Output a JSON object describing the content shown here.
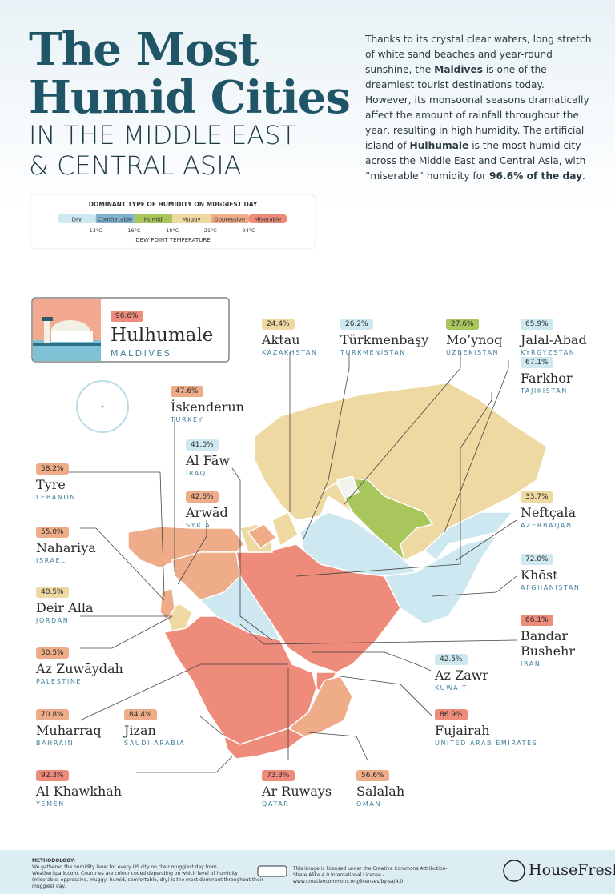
{
  "header": {
    "title_line1": "The Most",
    "title_line2": "Humid Cities",
    "subtitle_line1": "IN THE MIDDLE EAST",
    "subtitle_line2": "& CENTRAL ASIA",
    "description": [
      "Thanks to its crystal clear waters, long stretch of white sand beaches and year-round sunshine, the ",
      "Maldives",
      " is one of the dreamiest tourist destinations today. However, its monsoonal seasons dramatically affect the amount of rainfall throughout the year, resulting in high humidity. The artificial island of ",
      "Hulhumale",
      " is the most humid city across the Middle East and Central Asia, with “miserable” humidity for ",
      "96.6% of the day",
      "."
    ]
  },
  "legend": {
    "title": "DOMINANT TYPE OF HUMIDITY ON MUGGIEST DAY",
    "categories": [
      {
        "name": "Dry",
        "color": "#cde8f0"
      },
      {
        "name": "Comfortable",
        "color": "#7fb3cf"
      },
      {
        "name": "Humid",
        "color": "#a9c65c"
      },
      {
        "name": "Muggy",
        "color": "#efd9a2"
      },
      {
        "name": "Oppressive",
        "color": "#eeac88"
      },
      {
        "name": "Miserable",
        "color": "#ee8b7b"
      }
    ],
    "thresholds": [
      "13°C",
      "16°C",
      "18°C",
      "21°C",
      "24°C"
    ],
    "axis_label": "DEW POINT TEMPERATURE"
  },
  "featured": {
    "percent": "96.6%",
    "city": "Hulhumale",
    "country": "MALDIVES",
    "color": "#ee8b7b"
  },
  "cities": [
    {
      "percent": "24.4%",
      "city": "Aktau",
      "country": "KAZAKHSTAN",
      "color": "#efd9a2"
    },
    {
      "percent": "26.2%",
      "city": "Türkmenbaşy",
      "country": "TURKMENISTAN",
      "color": "#cde8f0"
    },
    {
      "percent": "27.6%",
      "city": "Mo’ynoq",
      "country": "UZBEKISTAN",
      "color": "#a9c65c"
    },
    {
      "percent": "65.9%",
      "city": "Jalal-Abad",
      "country": "KYRGYZSTAN",
      "color": "#cde8f0"
    },
    {
      "percent": "67.1%",
      "city": "Farkhor",
      "country": "TAJIKISTAN",
      "color": "#cde8f0"
    },
    {
      "percent": "47.6%",
      "city": "İskenderun",
      "country": "TURKEY",
      "color": "#eeac88"
    },
    {
      "percent": "41.0%",
      "city": "Al Fāw",
      "country": "IRAQ",
      "color": "#cde8f0"
    },
    {
      "percent": "58.2%",
      "city": "Tyre",
      "country": "LEBANON",
      "color": "#eeac88"
    },
    {
      "percent": "42.6%",
      "city": "Arwād",
      "country": "SYRIA",
      "color": "#eeac88"
    },
    {
      "percent": "33.7%",
      "city": "Neftçala",
      "country": "AZERBAIJAN",
      "color": "#efd9a2"
    },
    {
      "percent": "55.0%",
      "city": "Nahariya",
      "country": "ISRAEL",
      "color": "#eeac88"
    },
    {
      "percent": "72.0%",
      "city": "Khōst",
      "country": "AFGHANISTAN",
      "color": "#cde8f0"
    },
    {
      "percent": "40.5%",
      "city": "Deir Alla",
      "country": "JORDAN",
      "color": "#efd9a2"
    },
    {
      "percent": "66.1%",
      "city": "Bandar Bushehr",
      "country": "IRAN",
      "color": "#ee8b7b"
    },
    {
      "percent": "50.5%",
      "city": "Az Zuwāydah",
      "country": "PALESTINE",
      "color": "#eeac88"
    },
    {
      "percent": "42.5%",
      "city": "Az Zawr",
      "country": "KUWAIT",
      "color": "#cde8f0"
    },
    {
      "percent": "70.8%",
      "city": "Muharraq",
      "country": "BAHRAIN",
      "color": "#eeac88"
    },
    {
      "percent": "84.4%",
      "city": "Jizan",
      "country": "SAUDI ARABIA",
      "color": "#eeac88"
    },
    {
      "percent": "86.9%",
      "city": "Fujairah",
      "country": "UNITED ARAB EMIRATES",
      "color": "#ee8b7b"
    },
    {
      "percent": "92.3%",
      "city": "Al Khawkhah",
      "country": "YEMEN",
      "color": "#ee8b7b"
    },
    {
      "percent": "73.3%",
      "city": "Ar Ruways",
      "country": "QATAR",
      "color": "#ee8b7b"
    },
    {
      "percent": "56.6%",
      "city": "Salalah",
      "country": "OMAN",
      "color": "#eeac88"
    }
  ],
  "footer": {
    "methodology_label": "METHODOLOGY:",
    "methodology": "We gathered the humidity level for every US city on their muggiest day from WeatherSpark.com. Countries are colour coded depending on which level of humidity (miserable, oppressive, muggy, humid, comfortable, dry) is the most dominant throughout their muggiest day.",
    "license": "This image is licensed under the Creative Commons Attribution-Share Alike 4.0 International License - www.creativecommons.org/licenses/by-sa/4.0",
    "brand": "HouseFresh"
  }
}
